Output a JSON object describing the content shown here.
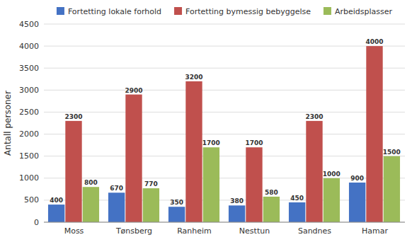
{
  "chart_data": {
    "type": "bar",
    "y_label": "Antall personer",
    "categories": [
      "Moss",
      "Tønsberg",
      "Ranheim",
      "Nesttun",
      "Sandnes",
      "Hamar"
    ],
    "series": [
      {
        "name": "Fortetting lokale forhold",
        "color": "#4472C4",
        "values": [
          400,
          670,
          350,
          380,
          450,
          900
        ]
      },
      {
        "name": "Fortetting bymessig bebyggelse",
        "color": "#C0504D",
        "values": [
          2300,
          2900,
          3200,
          1700,
          2300,
          4000
        ]
      },
      {
        "name": "Arbeidsplasser",
        "color": "#9BBB59",
        "values": [
          800,
          770,
          1700,
          580,
          1000,
          1500
        ]
      }
    ],
    "ylim": [
      0,
      4500
    ],
    "yticks": [
      0,
      500,
      1000,
      1500,
      2000,
      2500,
      3000,
      3500,
      4000,
      4500
    ],
    "grid": true,
    "legend": "top",
    "data_labels": true
  }
}
